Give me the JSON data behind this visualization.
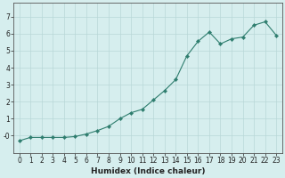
{
  "x": [
    0,
    1,
    2,
    3,
    4,
    5,
    6,
    7,
    8,
    9,
    10,
    11,
    12,
    13,
    14,
    15,
    16,
    17,
    18,
    19,
    20,
    21,
    22,
    23
  ],
  "y": [
    -0.3,
    -0.1,
    -0.1,
    -0.1,
    -0.1,
    -0.05,
    0.1,
    0.3,
    0.55,
    1.0,
    1.35,
    1.55,
    2.1,
    2.65,
    3.3,
    4.7,
    5.55,
    6.1,
    5.4,
    5.7,
    5.8,
    6.5,
    6.7,
    5.9
  ],
  "xlabel": "Humidex (Indice chaleur)",
  "xlim": [
    -0.5,
    23.5
  ],
  "ylim": [
    -1.0,
    7.8
  ],
  "yticks": [
    0,
    1,
    2,
    3,
    4,
    5,
    6,
    7
  ],
  "ytick_labels": [
    "-0",
    "1",
    "2",
    "3",
    "4",
    "5",
    "6",
    "7"
  ],
  "xticks": [
    0,
    1,
    2,
    3,
    4,
    5,
    6,
    7,
    8,
    9,
    10,
    11,
    12,
    13,
    14,
    15,
    16,
    17,
    18,
    19,
    20,
    21,
    22,
    23
  ],
  "line_color": "#2e7d6e",
  "marker": "D",
  "marker_size": 2.2,
  "bg_color": "#d6eeee",
  "grid_color": "#b8d8d8",
  "tick_label_fontsize": 5.5,
  "xlabel_fontsize": 6.5
}
